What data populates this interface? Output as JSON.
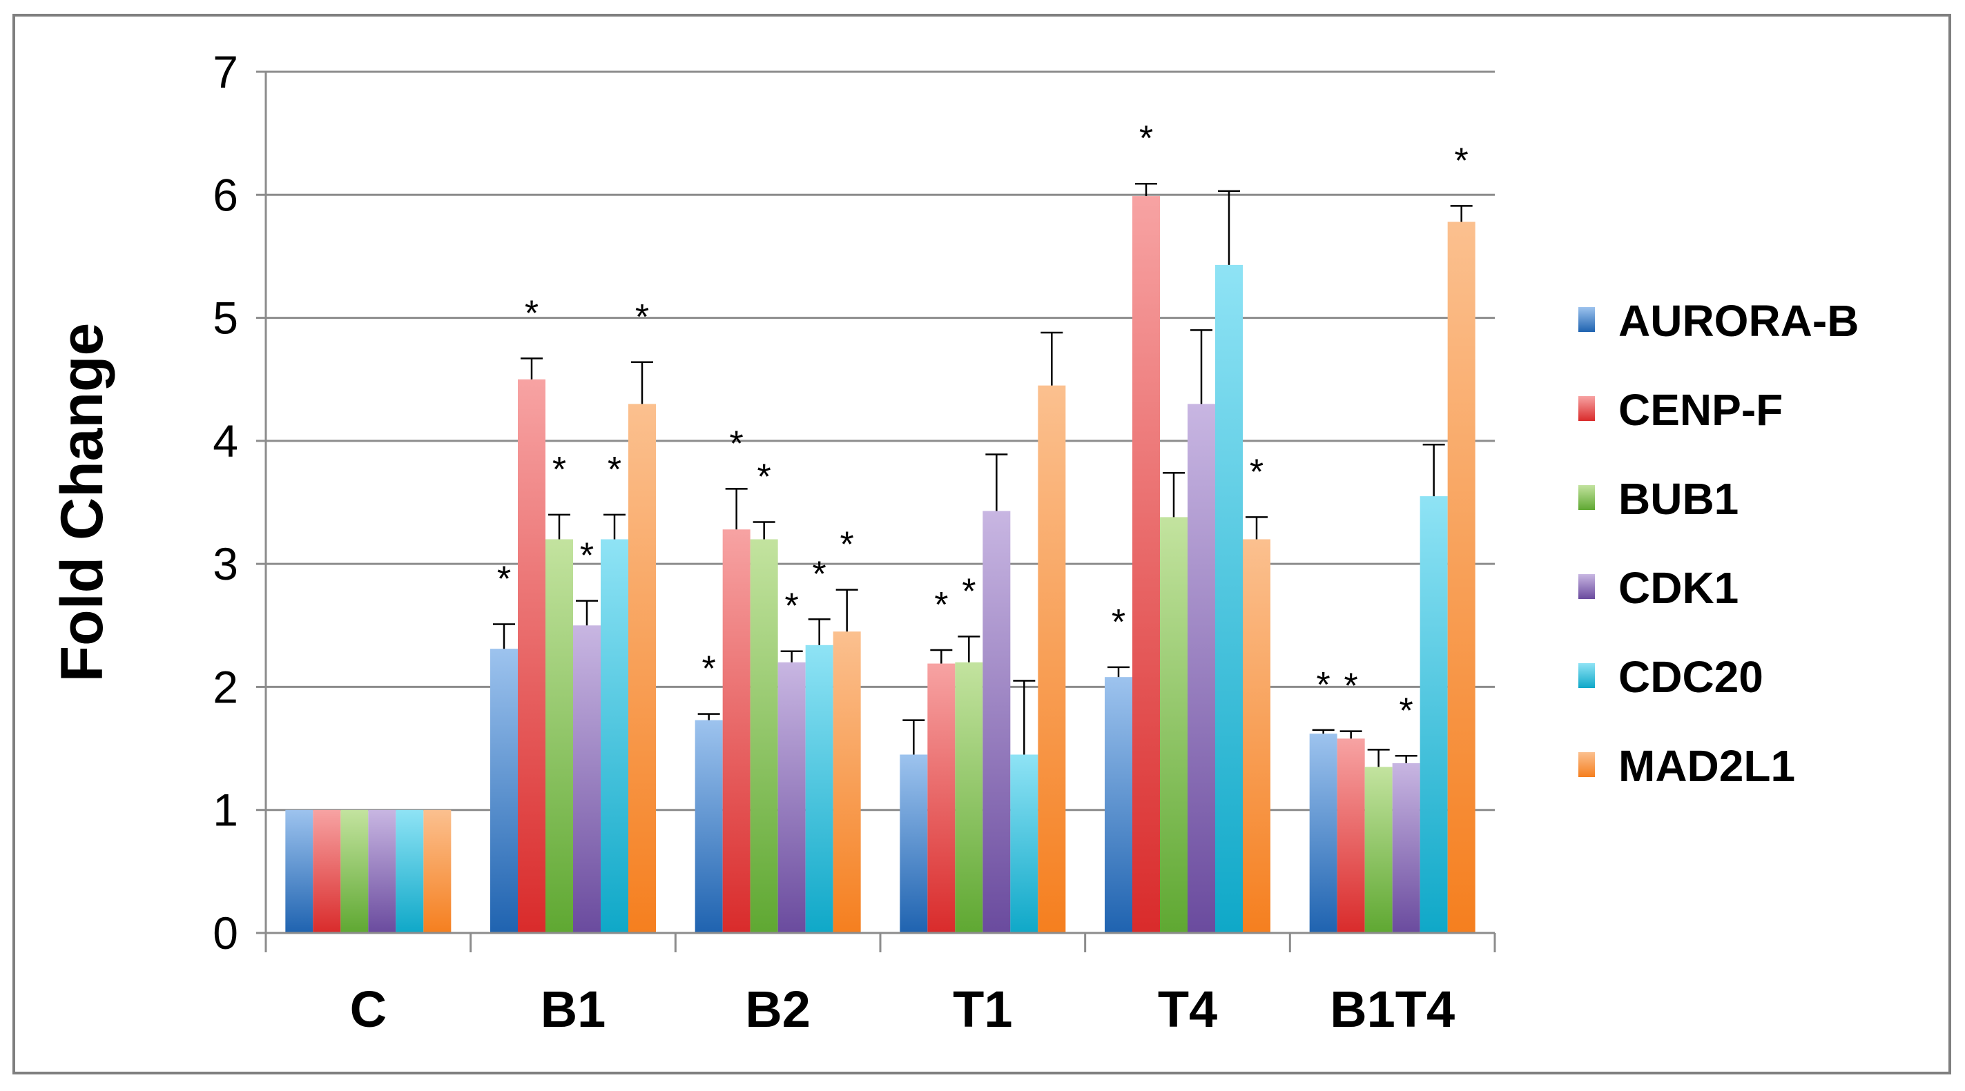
{
  "chart_data": {
    "type": "bar",
    "title": "",
    "xlabel": "",
    "ylabel": "Fold Change",
    "ylim": [
      0,
      7
    ],
    "yticks": [
      0,
      1,
      2,
      3,
      4,
      5,
      6,
      7
    ],
    "grid": true,
    "legend_position": "right",
    "categories": [
      "C",
      "B1",
      "B2",
      "T1",
      "T4",
      "B1T4"
    ],
    "series": [
      {
        "name": "AURORA-B",
        "color_dark": "#1f63b0",
        "color_light": "#9dc3ee",
        "values": [
          1,
          2.31,
          1.73,
          1.45,
          2.08,
          1.62
        ],
        "errors": [
          0,
          0.2,
          0.05,
          0.28,
          0.08,
          0.03
        ],
        "marks": [
          "",
          "*",
          "*",
          "",
          "*",
          "*"
        ]
      },
      {
        "name": "CENP-F",
        "color_dark": "#d92b2b",
        "color_light": "#f7a3a3",
        "values": [
          1,
          4.5,
          3.28,
          2.19,
          5.99,
          1.58
        ],
        "errors": [
          0,
          0.17,
          0.33,
          0.11,
          0.1,
          0.06
        ],
        "marks": [
          "",
          "*",
          "*",
          "*",
          "*",
          "*"
        ]
      },
      {
        "name": "BUB1",
        "color_dark": "#5fa832",
        "color_light": "#c3e39f",
        "values": [
          1,
          3.2,
          3.2,
          2.2,
          3.38,
          1.35
        ],
        "errors": [
          0,
          0.2,
          0.14,
          0.21,
          0.36,
          0.14
        ],
        "marks": [
          "",
          "*",
          "*",
          "*",
          "",
          ""
        ]
      },
      {
        "name": "CDK1",
        "color_dark": "#6a4b9e",
        "color_light": "#c8b6e2",
        "values": [
          1,
          2.5,
          2.2,
          3.43,
          4.3,
          1.38
        ],
        "errors": [
          0,
          0.2,
          0.09,
          0.46,
          0.6,
          0.06
        ],
        "marks": [
          "",
          "*",
          "*",
          "",
          "",
          "*"
        ]
      },
      {
        "name": "CDC20",
        "color_dark": "#0fa8c8",
        "color_light": "#8fe3f5",
        "values": [
          1,
          3.2,
          2.34,
          1.45,
          5.43,
          3.55
        ],
        "errors": [
          0,
          0.2,
          0.21,
          0.6,
          0.6,
          0.42
        ],
        "marks": [
          "",
          "*",
          "*",
          "",
          "",
          ""
        ]
      },
      {
        "name": "MAD2L1",
        "color_dark": "#f57f1f",
        "color_light": "#fbc08f",
        "values": [
          1,
          4.3,
          2.45,
          4.45,
          3.2,
          5.78
        ],
        "errors": [
          0,
          0.34,
          0.34,
          0.43,
          0.18,
          0.13
        ],
        "marks": [
          "",
          "*",
          "*",
          "",
          "*",
          "*"
        ]
      }
    ]
  }
}
